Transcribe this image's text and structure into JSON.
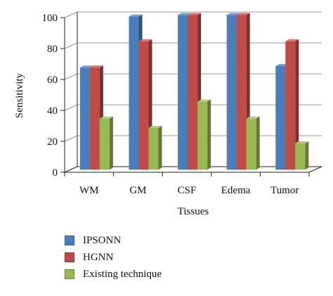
{
  "chart_data": {
    "type": "bar",
    "title": "",
    "xlabel": "Tissues",
    "ylabel": "Sensitivity",
    "ylim": [
      0,
      100
    ],
    "yticks": [
      "0",
      "20",
      "40",
      "60",
      "80",
      "100"
    ],
    "categories": [
      "WM",
      "GM",
      "CSF",
      "Edema",
      "Tumor"
    ],
    "series": [
      {
        "name": "IPSONN",
        "color": "#4a7ebb",
        "values": [
          66,
          99,
          100,
          100,
          67
        ]
      },
      {
        "name": "HGNN",
        "color": "#be4b48",
        "values": [
          66,
          83,
          100,
          100,
          83
        ]
      },
      {
        "name": "Existing technique",
        "color": "#98b954",
        "values": [
          33,
          27,
          44,
          33,
          17
        ]
      }
    ],
    "legend_position": "bottom",
    "grid": true,
    "style": "3d-bar"
  }
}
